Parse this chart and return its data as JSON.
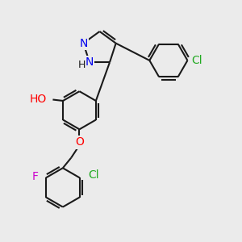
{
  "bg_color": "#ebebeb",
  "bond_color": "#1a1a1a",
  "bond_width": 1.5,
  "atom_colors": {
    "N": "#0000ee",
    "O": "#ff0000",
    "Cl": "#22aa22",
    "F": "#cc00cc",
    "H": "#1a1a1a"
  },
  "font_size": 10
}
